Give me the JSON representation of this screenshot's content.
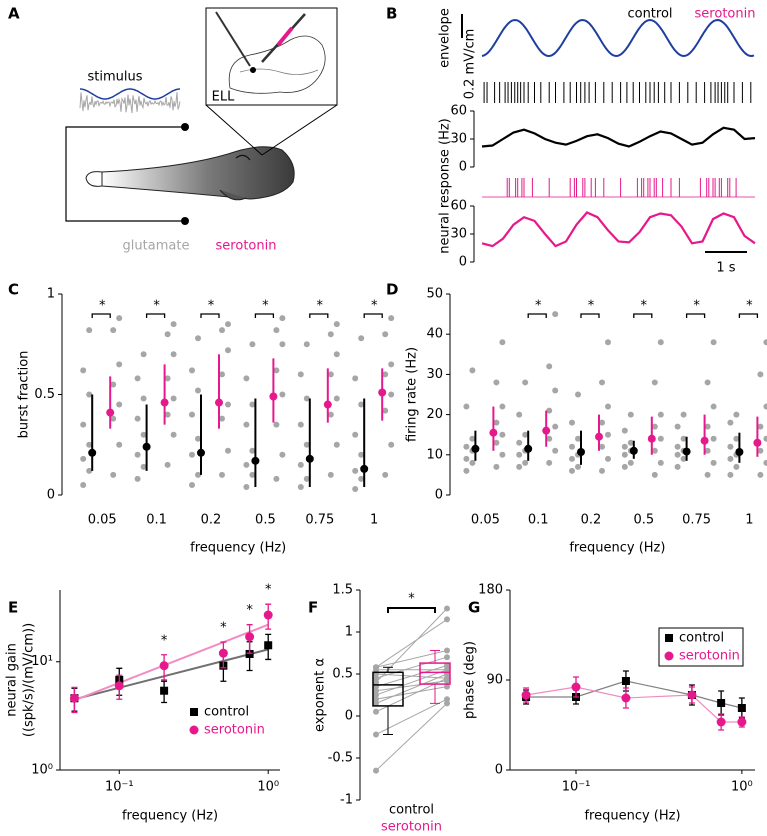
{
  "panel_labels": [
    "A",
    "B",
    "C",
    "D",
    "E",
    "F",
    "G"
  ],
  "panel_a": {
    "stimulus": "stimulus",
    "inset": "ELL",
    "glutamate": "glutamate",
    "serotonin": "serotonin"
  },
  "chart_data": [
    {
      "type": "trace",
      "envelope_label": "envelope",
      "envelope_scale": "0.2 mV/cm",
      "envelope_color": "#1f3f9f",
      "ylabel": "neural response (Hz)",
      "ylim": [
        0,
        60
      ],
      "yticks": [
        0,
        30,
        60
      ],
      "time_scale": {
        "value": 1,
        "label": "1 s"
      },
      "x": [
        0,
        0.25,
        0.5,
        0.75,
        1,
        1.25,
        1.5,
        1.75,
        2,
        2.25,
        2.5,
        2.75,
        3,
        3.25,
        3.5,
        3.75,
        4,
        4.25,
        4.5,
        4.75,
        5,
        5.25,
        5.5,
        5.75,
        6,
        6.25,
        6.5
      ],
      "series": [
        {
          "name": "control",
          "color": "#000000",
          "values": [
            22,
            23,
            30,
            37,
            40,
            36,
            30,
            26,
            24,
            28,
            33,
            35,
            31,
            25,
            22,
            27,
            33,
            38,
            36,
            30,
            24,
            26,
            35,
            42,
            40,
            30,
            31
          ],
          "spikes": [
            0.05,
            0.12,
            0.3,
            0.42,
            0.55,
            0.62,
            0.7,
            0.78,
            0.85,
            0.92,
            1.0,
            1.1,
            1.25,
            1.4,
            1.6,
            1.75,
            1.95,
            2.1,
            2.25,
            2.35,
            2.45,
            2.55,
            2.7,
            2.9,
            3.1,
            3.3,
            3.45,
            3.6,
            3.75,
            3.9,
            4.0,
            4.1,
            4.2,
            4.35,
            4.5,
            4.7,
            4.9,
            5.1,
            5.3,
            5.45,
            5.55,
            5.62,
            5.7,
            5.78,
            5.85,
            6.0,
            6.2,
            6.4
          ]
        },
        {
          "name": "serotonin",
          "color": "#e5198b",
          "values": [
            20,
            17,
            25,
            40,
            48,
            44,
            30,
            17,
            22,
            40,
            53,
            48,
            34,
            22,
            21,
            32,
            48,
            52,
            50,
            38,
            20,
            22,
            46,
            52,
            48,
            28,
            20
          ],
          "spikes": [
            0.6,
            0.65,
            0.8,
            0.85,
            0.95,
            1.0,
            1.2,
            1.6,
            2.1,
            2.2,
            2.25,
            2.4,
            2.45,
            2.6,
            2.7,
            2.9,
            3.3,
            3.7,
            3.8,
            3.85,
            3.95,
            4.0,
            4.1,
            4.15,
            4.3,
            4.5,
            4.7,
            5.2,
            5.35,
            5.4,
            5.5,
            5.55,
            5.65,
            5.7,
            5.85,
            5.9,
            6.05
          ]
        }
      ]
    },
    {
      "type": "dotplot",
      "ylabel": "burst fraction",
      "xlabel": "frequency (Hz)",
      "categories": [
        "0.05",
        "0.1",
        "0.2",
        "0.5",
        "0.75",
        "1"
      ],
      "ylim": [
        0,
        1
      ],
      "yticks": [
        0,
        0.5,
        1
      ],
      "point_color": "#a6a6a6",
      "significance": [
        "*",
        "*",
        "*",
        "*",
        "*",
        "*"
      ],
      "series": [
        {
          "name": "control",
          "color": "#000000",
          "values": [
            0.21,
            0.24,
            0.21,
            0.17,
            0.18,
            0.13
          ],
          "lower": [
            0.12,
            0.12,
            0.1,
            0.04,
            0.04,
            0.04
          ],
          "upper": [
            0.5,
            0.45,
            0.5,
            0.48,
            0.48,
            0.48
          ],
          "points": [
            [
              0.05,
              0.12,
              0.18,
              0.25,
              0.35,
              0.5,
              0.62,
              0.82
            ],
            [
              0.08,
              0.14,
              0.2,
              0.3,
              0.38,
              0.48,
              0.58,
              0.7
            ],
            [
              0.05,
              0.1,
              0.2,
              0.28,
              0.4,
              0.52,
              0.62,
              0.78
            ],
            [
              0.04,
              0.1,
              0.15,
              0.22,
              0.35,
              0.45,
              0.58,
              0.75
            ],
            [
              0.04,
              0.08,
              0.15,
              0.25,
              0.35,
              0.48,
              0.6,
              0.75
            ],
            [
              0.03,
              0.08,
              0.12,
              0.2,
              0.3,
              0.45,
              0.58,
              0.78
            ]
          ]
        },
        {
          "name": "serotonin",
          "color": "#e5198b",
          "values": [
            0.41,
            0.46,
            0.46,
            0.49,
            0.45,
            0.51
          ],
          "lower": [
            0.33,
            0.35,
            0.33,
            0.36,
            0.36,
            0.37
          ],
          "upper": [
            0.59,
            0.65,
            0.7,
            0.68,
            0.63,
            0.63
          ],
          "points": [
            [
              0.1,
              0.25,
              0.38,
              0.45,
              0.55,
              0.65,
              0.82,
              0.88
            ],
            [
              0.15,
              0.3,
              0.4,
              0.48,
              0.58,
              0.7,
              0.8,
              0.85
            ],
            [
              0.1,
              0.22,
              0.38,
              0.45,
              0.6,
              0.72,
              0.82,
              0.85
            ],
            [
              0.08,
              0.2,
              0.35,
              0.5,
              0.62,
              0.75,
              0.82,
              0.88
            ],
            [
              0.1,
              0.25,
              0.4,
              0.48,
              0.6,
              0.7,
              0.8,
              0.85
            ],
            [
              0.1,
              0.25,
              0.42,
              0.5,
              0.6,
              0.65,
              0.8,
              0.88
            ]
          ]
        }
      ]
    },
    {
      "type": "dotplot",
      "ylabel": "firing rate (Hz)",
      "xlabel": "frequency (Hz)",
      "categories": [
        "0.05",
        "0.1",
        "0.2",
        "0.5",
        "0.75",
        "1"
      ],
      "ylim": [
        0,
        50
      ],
      "yticks": [
        0,
        10,
        20,
        30,
        40,
        50
      ],
      "point_color": "#a6a6a6",
      "significance": [
        null,
        "*",
        "*",
        "*",
        "*",
        "*"
      ],
      "series": [
        {
          "name": "control",
          "color": "#000000",
          "values": [
            11.5,
            11.5,
            10.7,
            11,
            10.8,
            10.7
          ],
          "lower": [
            8.5,
            8.5,
            7.5,
            9,
            8.5,
            8
          ],
          "upper": [
            16,
            16,
            16,
            13.5,
            14.5,
            15.5
          ],
          "points": [
            [
              6,
              8,
              9,
              11,
              12,
              14,
              22,
              31
            ],
            [
              7,
              8,
              10,
              11,
              13,
              15,
              20,
              28
            ],
            [
              6,
              7,
              9,
              10,
              12,
              14,
              18,
              25
            ],
            [
              7,
              8,
              10,
              11,
              12,
              13,
              16,
              20
            ],
            [
              7,
              9,
              10,
              11,
              12,
              14,
              17,
              20
            ],
            [
              5,
              7,
              9,
              10,
              12,
              14,
              18,
              20
            ]
          ]
        },
        {
          "name": "serotonin",
          "color": "#e5198b",
          "values": [
            15.5,
            16,
            14.5,
            14,
            13.5,
            13
          ],
          "lower": [
            11,
            12,
            11,
            10,
            10,
            9.5
          ],
          "upper": [
            22,
            21,
            20,
            19.5,
            20,
            19.5
          ],
          "points": [
            [
              7,
              10,
              13,
              15,
              18,
              22,
              28,
              38
            ],
            [
              8,
              11,
              14,
              17,
              21,
              26,
              32,
              45
            ],
            [
              6,
              9,
              12,
              15,
              18,
              22,
              28,
              38
            ],
            [
              5,
              8,
              11,
              14,
              17,
              20,
              28,
              38
            ],
            [
              5,
              8,
              11,
              14,
              17,
              22,
              28,
              38
            ],
            [
              5,
              8,
              11,
              14,
              17,
              22,
              30,
              38
            ]
          ]
        }
      ]
    },
    {
      "type": "scatter",
      "ylabel": [
        "neural gain",
        "((spk/s)/(mV/cm))"
      ],
      "xlabel": "frequency (Hz)",
      "xlog": true,
      "ylog": true,
      "legend": "lower right",
      "xlim": [
        0.04,
        1.2
      ],
      "xticks": [
        {
          "value": 0.1,
          "label": "10⁻¹"
        },
        {
          "value": 1,
          "label": "10⁰"
        }
      ],
      "ylim": [
        1,
        46
      ],
      "yticks": [
        {
          "value": 1,
          "label": "10⁰"
        },
        {
          "value": 10,
          "label": "10¹"
        }
      ],
      "x": [
        0.05,
        0.1,
        0.2,
        0.5,
        0.75,
        1
      ],
      "significance": [
        null,
        null,
        "*",
        "*",
        "*",
        "*"
      ],
      "series": [
        {
          "name": "control",
          "color": "#000000",
          "marker": "square",
          "line_color": "#707070",
          "values": [
            4.6,
            6.8,
            5.4,
            9.2,
            11.8,
            14.2
          ],
          "errors": [
            1.1,
            1.9,
            1.2,
            2.6,
            3.5,
            3.7
          ],
          "fit": {
            "x": [
              0.05,
              1
            ],
            "values": [
              4.5,
              13
            ]
          }
        },
        {
          "name": "serotonin",
          "color": "#e5198b",
          "marker": "circle",
          "line_color": "#f48cc4",
          "values": [
            4.6,
            6.0,
            9.2,
            12.0,
            17.0,
            27.0
          ],
          "errors": [
            1.2,
            1.5,
            2.4,
            3.2,
            5.0,
            7.0
          ],
          "fit": {
            "x": [
              0.05,
              1
            ],
            "values": [
              4.4,
              22
            ]
          }
        }
      ]
    },
    {
      "type": "box",
      "ylabel": "exponent α",
      "categories": [
        "control",
        "serotonin"
      ],
      "ylim": [
        -1,
        1.5
      ],
      "yticks": [
        -1,
        -0.5,
        0,
        0.5,
        1,
        1.5
      ],
      "significance": "*",
      "point_color": "#a6a6a6",
      "series": [
        {
          "name": "control",
          "color": "#000000",
          "whisker_low": -0.22,
          "q1": 0.12,
          "median": 0.37,
          "q3": 0.52,
          "whisker_high": 0.58,
          "points": [
            -0.65,
            -0.22,
            0.05,
            0.15,
            0.25,
            0.3,
            0.35,
            0.4,
            0.45,
            0.5,
            0.55,
            0.58,
            0.58,
            0.2
          ]
        },
        {
          "name": "serotonin",
          "color": "#e5198b",
          "whisker_low": 0.15,
          "q1": 0.38,
          "median": 0.52,
          "q3": 0.63,
          "whisker_high": 0.78,
          "points": [
            0.15,
            0.2,
            0.45,
            0.5,
            0.55,
            0.42,
            0.6,
            1.28,
            0.7,
            0.45,
            0.55,
            0.78,
            1.15,
            0.35
          ]
        }
      ]
    },
    {
      "type": "scatter",
      "ylabel": "phase (deg)",
      "xlabel": "frequency (Hz)",
      "xlog": true,
      "ylog": false,
      "connect": true,
      "legend": "upper right",
      "xlim": [
        0.04,
        1.2
      ],
      "xticks": [
        {
          "value": 0.1,
          "label": "10⁻¹"
        },
        {
          "value": 1,
          "label": "10⁰"
        }
      ],
      "ylim": [
        0,
        180
      ],
      "yticks": [
        0,
        90,
        180
      ],
      "x": [
        0.05,
        0.1,
        0.2,
        0.5,
        0.75,
        1
      ],
      "series": [
        {
          "name": "control",
          "color": "#000000",
          "marker": "square",
          "line_color": "#808080",
          "values": [
            73,
            73,
            89,
            75,
            67,
            62
          ],
          "errors": [
            7,
            7,
            10,
            10,
            12,
            10
          ]
        },
        {
          "name": "serotonin",
          "color": "#e5198b",
          "marker": "circle",
          "line_color": "#f08cc0",
          "values": [
            75,
            83,
            72,
            75,
            48,
            48
          ],
          "errors": [
            7,
            10,
            10,
            8,
            8,
            5
          ]
        }
      ]
    }
  ]
}
